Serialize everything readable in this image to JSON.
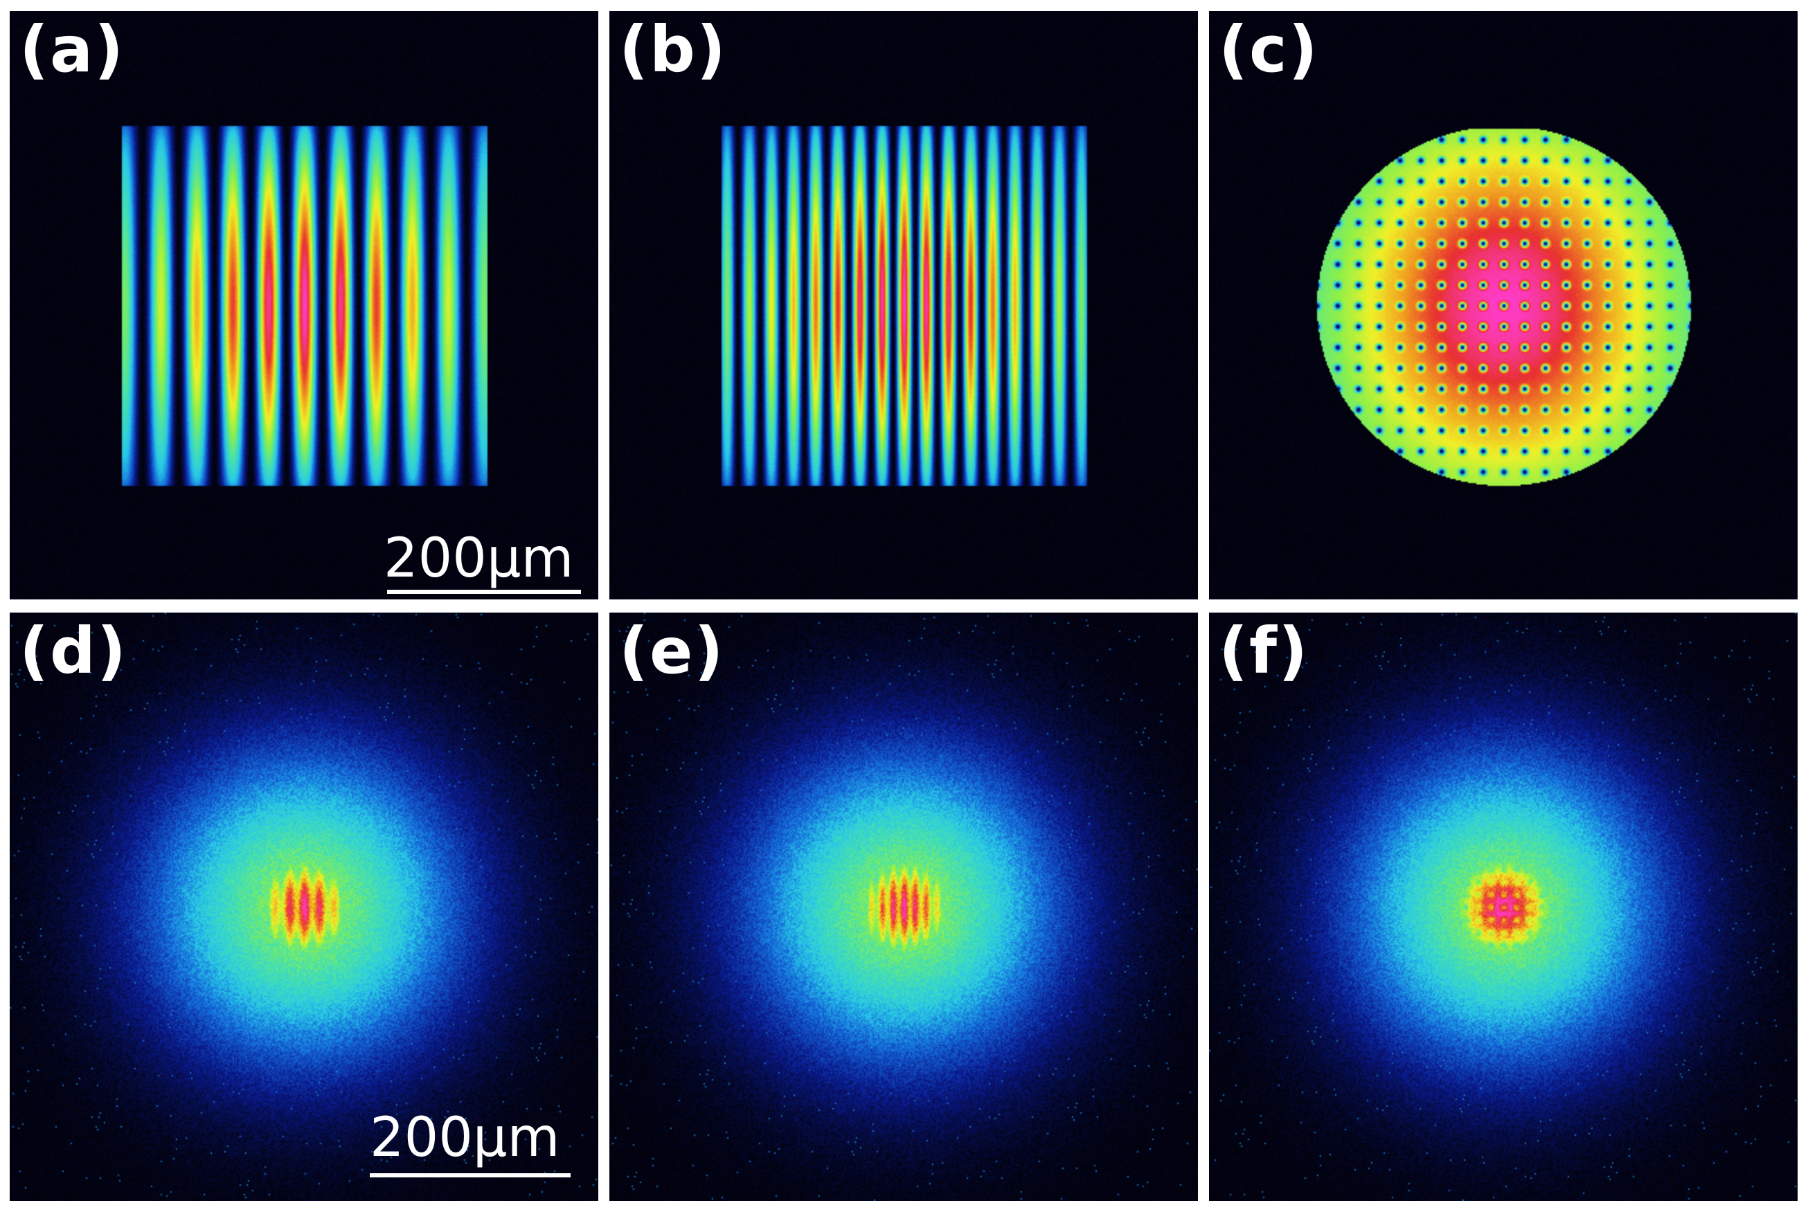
{
  "panels": [
    {
      "label": "(a)",
      "pattern": "fringes",
      "kind": "near",
      "period": "wide"
    },
    {
      "label": "(b)",
      "pattern": "fringes",
      "kind": "near",
      "period": "narrow"
    },
    {
      "label": "(c)",
      "pattern": "grid",
      "kind": "near",
      "period": "grid"
    },
    {
      "label": "(d)",
      "pattern": "fringes",
      "kind": "far",
      "period": "wide"
    },
    {
      "label": "(e)",
      "pattern": "fringes",
      "kind": "far",
      "period": "narrow"
    },
    {
      "label": "(f)",
      "pattern": "grid",
      "kind": "far",
      "period": "grid"
    }
  ],
  "scale_bars": {
    "top": "200µm",
    "bottom": "200µm"
  },
  "colormap": [
    "#02020e",
    "#0a1a8c",
    "#1466d8",
    "#28c8e8",
    "#46e0b0",
    "#8cf04a",
    "#f0f028",
    "#f0a020",
    "#e83030",
    "#ff3cc8"
  ]
}
